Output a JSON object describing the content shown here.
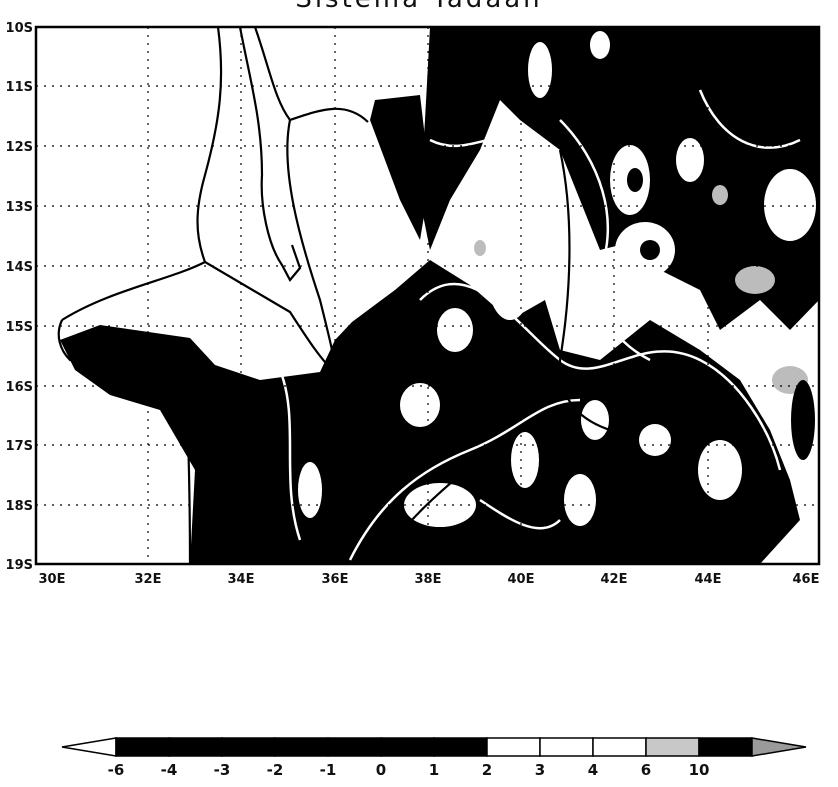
{
  "title": "Sistema Tadaan",
  "map": {
    "lon_range": [
      "30E",
      "46E"
    ],
    "lat_range": [
      "10S",
      "19S"
    ],
    "x_ticks": [
      "30E",
      "32E",
      "34E",
      "36E",
      "38E",
      "40E",
      "42E",
      "44E",
      "46E"
    ],
    "y_ticks": [
      "10S",
      "11S",
      "12S",
      "13S",
      "14S",
      "15S",
      "16S",
      "17S",
      "18S",
      "19S"
    ],
    "gridlines": "dotted",
    "field_colors": {
      "low": "#000000",
      "mid": "#ffffff",
      "high": "#bcbcbc"
    }
  },
  "colorbar": {
    "levels": [
      "-6",
      "-4",
      "-3",
      "-2",
      "-1",
      "0",
      "1",
      "2",
      "3",
      "4",
      "6",
      "10"
    ],
    "bin_colors": [
      "#000000",
      "#000000",
      "#000000",
      "#000000",
      "#000000",
      "#000000",
      "#000000",
      "#ffffff",
      "#ffffff",
      "#ffffff",
      "#c8c8c8",
      "#000000"
    ],
    "end_colors": {
      "left": "#ffffff",
      "right": "#9a9a9a"
    }
  }
}
